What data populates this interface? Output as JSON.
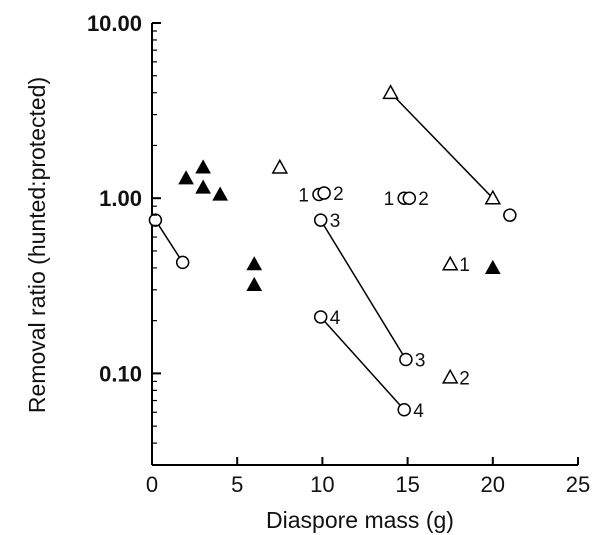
{
  "chart_data": {
    "type": "scatter",
    "title": "",
    "xlabel": "Diaspore mass (g)",
    "ylabel": "Removal ratio (hunted:protected)",
    "xlim": [
      0,
      25
    ],
    "ylim": [
      0.03,
      10
    ],
    "yscale": "log",
    "x_ticks": [
      0,
      5,
      10,
      15,
      20,
      25
    ],
    "x_tick_labels": [
      "0",
      "5",
      "10",
      "15",
      "20",
      "25"
    ],
    "y_ticks": [
      0.1,
      1,
      10
    ],
    "y_tick_labels": [
      "0.10",
      "1.00",
      "10.00"
    ],
    "grid": false,
    "legend": "none",
    "series": [
      {
        "marker": "filled-triangle",
        "color": "#000000",
        "points": [
          {
            "x": 2,
            "y": 1.3
          },
          {
            "x": 3,
            "y": 1.5
          },
          {
            "x": 3,
            "y": 1.15
          },
          {
            "x": 4,
            "y": 1.05
          },
          {
            "x": 6,
            "y": 0.42
          },
          {
            "x": 6,
            "y": 0.32
          },
          {
            "x": 20,
            "y": 0.4
          }
        ]
      },
      {
        "marker": "open-triangle",
        "color": "#000000",
        "points": [
          {
            "x": 7.5,
            "y": 1.5,
            "label": ""
          },
          {
            "x": 14,
            "y": 4.0,
            "label": ""
          },
          {
            "x": 20,
            "y": 1.0,
            "label": ""
          },
          {
            "x": 17.5,
            "y": 0.42,
            "label": "1"
          },
          {
            "x": 17.5,
            "y": 0.095,
            "label": "2"
          }
        ]
      },
      {
        "marker": "open-circle",
        "color": "#000000",
        "points": [
          {
            "x": 0.2,
            "y": 0.75,
            "label": ""
          },
          {
            "x": 1.8,
            "y": 0.43,
            "label": ""
          },
          {
            "x": 21,
            "y": 0.8,
            "label": ""
          },
          {
            "x": 9.8,
            "y": 1.05,
            "label": "1"
          },
          {
            "x": 10.1,
            "y": 1.07,
            "label": "2"
          },
          {
            "x": 9.9,
            "y": 0.75,
            "label": "3"
          },
          {
            "x": 9.9,
            "y": 0.21,
            "label": "4"
          },
          {
            "x": 14.8,
            "y": 1.0,
            "label": "1"
          },
          {
            "x": 15.1,
            "y": 1.0,
            "label": "2"
          },
          {
            "x": 14.9,
            "y": 0.12,
            "label": "3"
          },
          {
            "x": 14.8,
            "y": 0.062,
            "label": "4"
          }
        ]
      }
    ],
    "connecting_lines": [
      [
        [
          0.2,
          0.75
        ],
        [
          1.8,
          0.43
        ]
      ],
      [
        [
          14,
          4.0
        ],
        [
          20,
          1.0
        ]
      ],
      [
        [
          9.9,
          0.75
        ],
        [
          14.9,
          0.12
        ]
      ],
      [
        [
          9.9,
          0.21
        ],
        [
          14.8,
          0.062
        ]
      ]
    ]
  }
}
